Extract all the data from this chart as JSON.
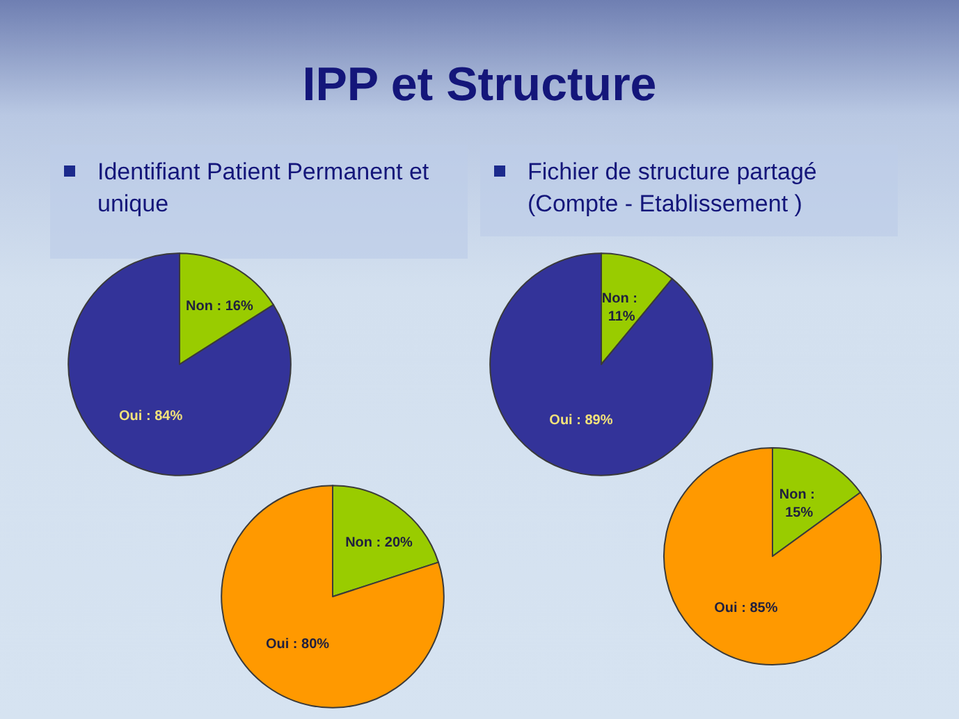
{
  "chart_data": [
    {
      "type": "pie",
      "title": "IPP et Structure",
      "subtitle": "Identifiant Patient Permanent et unique",
      "categories": [
        "Non",
        "Oui"
      ],
      "values": [
        16,
        84
      ],
      "colors": [
        "#99cc00",
        "#333399"
      ],
      "value_labels": [
        ": 16%",
        ": 84%"
      ]
    },
    {
      "type": "pie",
      "categories": [
        "Non",
        "Oui"
      ],
      "values": [
        20,
        80
      ],
      "colors": [
        "#99cc00",
        "#ff9900"
      ],
      "value_labels": [
        ": 20%",
        ": 80%"
      ]
    },
    {
      "type": "pie",
      "subtitle": "Fichier de structure partagé (Compte - Etablissement )",
      "categories": [
        "Non",
        "Oui"
      ],
      "values": [
        11,
        89
      ],
      "colors": [
        "#99cc00",
        "#333399"
      ],
      "value_labels": [
        ": 11%",
        ": 89%"
      ]
    },
    {
      "type": "pie",
      "categories": [
        "Non",
        "Oui"
      ],
      "values": [
        15,
        85
      ],
      "colors": [
        "#99cc00",
        "#ff9900"
      ],
      "value_labels": [
        ": 15%",
        ": 85%"
      ]
    }
  ]
}
